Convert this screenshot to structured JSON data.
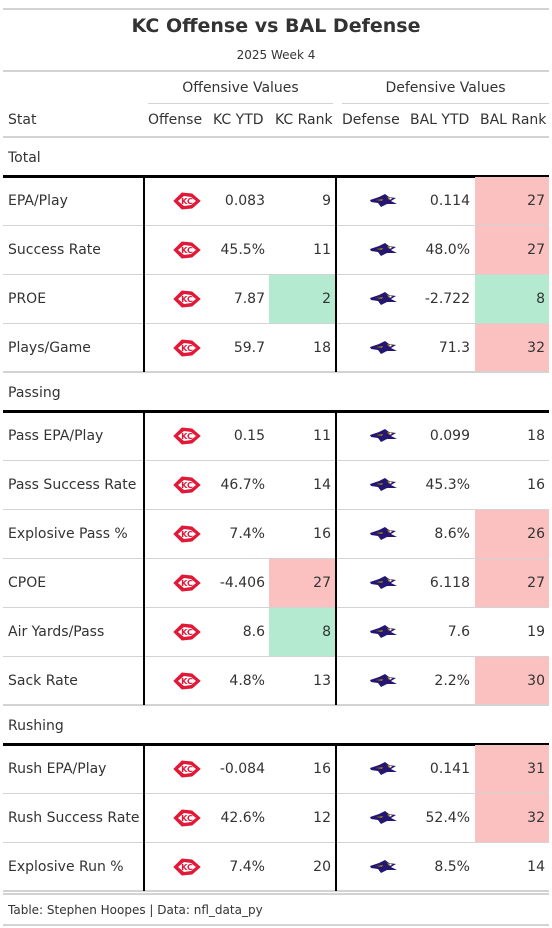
{
  "title": "KC Offense vs BAL Defense",
  "subtitle": "2025 Week 4",
  "spanners": {
    "offense": "Offensive Values",
    "defense": "Defensive Values"
  },
  "columns": {
    "stat": "Stat",
    "offense": "Offense",
    "off_ytd": "KC YTD",
    "off_rank": "KC Rank",
    "defense": "Defense",
    "def_ytd": "BAL YTD",
    "def_rank": "BAL Rank"
  },
  "colors": {
    "good": "#b3ead0",
    "bad": "#fbc0c0",
    "kc_red": "#e31837",
    "bal_purple": "#241773",
    "bal_gold": "#9e7c0c"
  },
  "icons": {
    "offense": "kc-chiefs-arrowhead-icon",
    "defense": "ravens-bird-icon"
  },
  "groups": [
    {
      "label": "Total",
      "rows": [
        {
          "stat": "EPA/Play",
          "off_ytd": "0.083",
          "off_rank": "9",
          "off_hl": "",
          "def_ytd": "0.114",
          "def_rank": "27",
          "def_hl": "bad"
        },
        {
          "stat": "Success Rate",
          "off_ytd": "45.5%",
          "off_rank": "11",
          "off_hl": "",
          "def_ytd": "48.0%",
          "def_rank": "27",
          "def_hl": "bad"
        },
        {
          "stat": "PROE",
          "off_ytd": "7.87",
          "off_rank": "2",
          "off_hl": "good",
          "def_ytd": "-2.722",
          "def_rank": "8",
          "def_hl": "good"
        },
        {
          "stat": "Plays/Game",
          "off_ytd": "59.7",
          "off_rank": "18",
          "off_hl": "",
          "def_ytd": "71.3",
          "def_rank": "32",
          "def_hl": "bad"
        }
      ]
    },
    {
      "label": "Passing",
      "rows": [
        {
          "stat": "Pass EPA/Play",
          "off_ytd": "0.15",
          "off_rank": "11",
          "off_hl": "",
          "def_ytd": "0.099",
          "def_rank": "18",
          "def_hl": ""
        },
        {
          "stat": "Pass Success Rate",
          "off_ytd": "46.7%",
          "off_rank": "14",
          "off_hl": "",
          "def_ytd": "45.3%",
          "def_rank": "16",
          "def_hl": ""
        },
        {
          "stat": "Explosive Pass %",
          "off_ytd": "7.4%",
          "off_rank": "16",
          "off_hl": "",
          "def_ytd": "8.6%",
          "def_rank": "26",
          "def_hl": "bad"
        },
        {
          "stat": "CPOE",
          "off_ytd": "-4.406",
          "off_rank": "27",
          "off_hl": "bad",
          "def_ytd": "6.118",
          "def_rank": "27",
          "def_hl": "bad"
        },
        {
          "stat": "Air Yards/Pass",
          "off_ytd": "8.6",
          "off_rank": "8",
          "off_hl": "good",
          "def_ytd": "7.6",
          "def_rank": "19",
          "def_hl": ""
        },
        {
          "stat": "Sack Rate",
          "off_ytd": "4.8%",
          "off_rank": "13",
          "off_hl": "",
          "def_ytd": "2.2%",
          "def_rank": "30",
          "def_hl": "bad"
        }
      ]
    },
    {
      "label": "Rushing",
      "rows": [
        {
          "stat": "Rush EPA/Play",
          "off_ytd": "-0.084",
          "off_rank": "16",
          "off_hl": "",
          "def_ytd": "0.141",
          "def_rank": "31",
          "def_hl": "bad"
        },
        {
          "stat": "Rush Success Rate",
          "off_ytd": "42.6%",
          "off_rank": "12",
          "off_hl": "",
          "def_ytd": "52.4%",
          "def_rank": "32",
          "def_hl": "bad"
        },
        {
          "stat": "Explosive Run %",
          "off_ytd": "7.4%",
          "off_rank": "20",
          "off_hl": "",
          "def_ytd": "8.5%",
          "def_rank": "14",
          "def_hl": ""
        }
      ]
    }
  ],
  "footer": "Table: Stephen Hoopes | Data: nfl_data_py"
}
